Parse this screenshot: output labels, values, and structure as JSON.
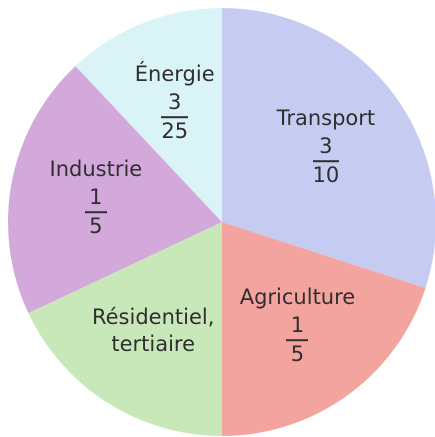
{
  "chart_data": {
    "type": "pie",
    "categories": [
      "Transport",
      "Agriculture",
      "Résidentiel, tertiaire",
      "Industrie",
      "Énergie"
    ],
    "values": [
      0.3,
      0.2,
      0.18,
      0.2,
      0.12
    ],
    "value_labels": [
      [
        "3",
        "10"
      ],
      [
        "1",
        "5"
      ],
      null,
      [
        "1",
        "5"
      ],
      [
        "3",
        "25"
      ]
    ],
    "colors": [
      "#c6cbf1",
      "#f4a49e",
      "#c9e8b9",
      "#d3a9dc",
      "#d9f3f6"
    ]
  }
}
